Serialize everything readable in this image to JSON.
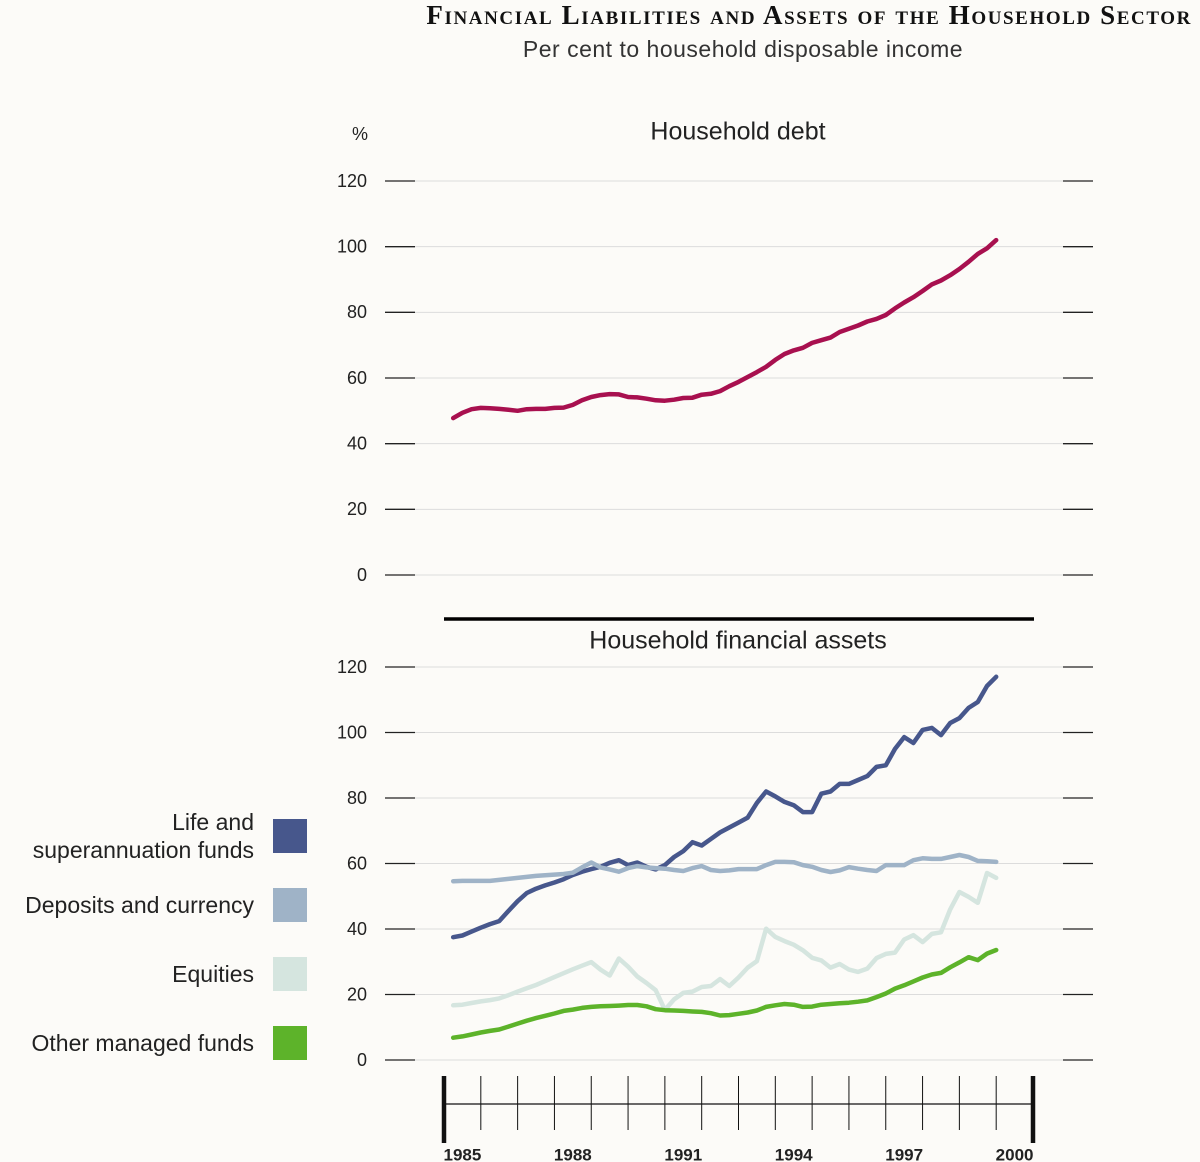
{
  "title": "Financial Liabilities and Assets of the Household Sector",
  "subtitle": "Per cent to household disposable income",
  "chart_data": [
    {
      "type": "line",
      "title": "Household debt",
      "ylabel": "%",
      "x": [
        1985.25,
        1985.5,
        1985.75,
        1986,
        1986.25,
        1986.5,
        1986.75,
        1987,
        1987.25,
        1987.5,
        1987.75,
        1988,
        1988.25,
        1988.5,
        1988.75,
        1989,
        1989.25,
        1989.5,
        1989.75,
        1990,
        1990.25,
        1990.5,
        1990.75,
        1991,
        1991.25,
        1991.5,
        1991.75,
        1992,
        1992.25,
        1992.5,
        1992.75,
        1993,
        1993.25,
        1993.5,
        1993.75,
        1994,
        1994.25,
        1994.5,
        1994.75,
        1995,
        1995.25,
        1995.5,
        1995.75,
        1996,
        1996.25,
        1996.5,
        1996.75,
        1997,
        1997.25,
        1997.5,
        1997.75,
        1998,
        1998.25,
        1998.5,
        1998.75,
        1999,
        1999.25,
        1999.5,
        1999.75,
        2000
      ],
      "values": [
        47.8,
        49.4,
        50.5,
        50.9,
        50.8,
        50.6,
        50.3,
        50,
        50.5,
        50.6,
        50.6,
        50.9,
        51,
        51.8,
        53.2,
        54.2,
        54.8,
        55.1,
        55,
        54.2,
        54.1,
        53.7,
        53.2,
        53.1,
        53.4,
        53.9,
        54,
        54.9,
        55.2,
        56,
        57.5,
        58.8,
        60.3,
        61.8,
        63.4,
        65.5,
        67.3,
        68.4,
        69.2,
        70.7,
        71.5,
        72.3,
        74,
        75,
        76,
        77.2,
        78,
        79.2,
        81.2,
        83,
        84.6,
        86.5,
        88.5,
        89.7,
        91.3,
        93.2,
        95.4,
        97.8,
        99.5,
        102
      ],
      "color": "#a8104f",
      "xlim": [
        1985,
        2001
      ],
      "ylim": [
        0,
        120
      ],
      "yticks": [
        0,
        20,
        40,
        60,
        80,
        100,
        120
      ]
    },
    {
      "type": "line",
      "title": "Household financial assets",
      "x": [
        1985.25,
        1985.5,
        1985.75,
        1986,
        1986.25,
        1986.5,
        1986.75,
        1987,
        1987.25,
        1987.5,
        1987.75,
        1988,
        1988.25,
        1988.5,
        1988.75,
        1989,
        1989.25,
        1989.5,
        1989.75,
        1990,
        1990.25,
        1990.5,
        1990.75,
        1991,
        1991.25,
        1991.5,
        1991.75,
        1992,
        1992.25,
        1992.5,
        1992.75,
        1993,
        1993.25,
        1993.5,
        1993.75,
        1994,
        1994.25,
        1994.5,
        1994.75,
        1995,
        1995.25,
        1995.5,
        1995.75,
        1996,
        1996.25,
        1996.5,
        1996.75,
        1997,
        1997.25,
        1997.5,
        1997.75,
        1998,
        1998.25,
        1998.5,
        1998.75,
        1999,
        1999.25,
        1999.5,
        1999.75,
        2000
      ],
      "series": [
        {
          "name": "Life and superannuation funds",
          "color": "#47578c",
          "values": [
            37.5,
            38,
            39.2,
            40.4,
            41.5,
            42.4,
            45.5,
            48.5,
            51,
            52.3,
            53.3,
            54.2,
            55.2,
            56.5,
            57.5,
            58.3,
            59,
            60.2,
            61,
            59.5,
            60.3,
            59,
            58.2,
            59.5,
            62,
            63.8,
            66.5,
            65.5,
            67.5,
            69.5,
            71,
            72.5,
            74,
            78.5,
            82,
            80.5,
            78.8,
            77.8,
            75.7,
            75.7,
            81.3,
            82,
            84.3,
            84.3,
            85.5,
            86.7,
            89.5,
            90,
            95,
            98.6,
            96.8,
            100.8,
            101.4,
            99.2,
            102.9,
            104.4,
            107.5,
            109.3,
            114.2,
            117
          ]
        },
        {
          "name": "Deposits and currency",
          "color": "#9fb3c7",
          "values": [
            54.6,
            54.7,
            54.7,
            54.7,
            54.7,
            55,
            55.3,
            55.6,
            55.9,
            56.2,
            56.4,
            56.6,
            56.8,
            57.2,
            58.8,
            60.3,
            58.8,
            58.2,
            57.5,
            58.6,
            59.2,
            58.8,
            58.6,
            58.4,
            58,
            57.7,
            58.6,
            59.2,
            58,
            57.7,
            57.9,
            58.3,
            58.3,
            58.3,
            59.5,
            60.5,
            60.5,
            60.4,
            59.5,
            59,
            58,
            57.4,
            57.9,
            58.9,
            58.4,
            58,
            57.7,
            59.5,
            59.5,
            59.5,
            61,
            61.6,
            61.4,
            61.4,
            62,
            62.6,
            62,
            60.8,
            60.7,
            60.5
          ]
        },
        {
          "name": "Equities",
          "color": "#d5e5df",
          "values": [
            16.7,
            16.9,
            17.4,
            17.9,
            18.3,
            18.8,
            19.8,
            20.9,
            21.9,
            22.9,
            24.1,
            25.3,
            26.5,
            27.7,
            28.8,
            29.9,
            27.6,
            25.8,
            31,
            28.5,
            25.5,
            23.5,
            21.3,
            15.3,
            18.5,
            20.5,
            20.9,
            22.3,
            22.6,
            24.7,
            22.6,
            25.2,
            28.2,
            30.2,
            40.1,
            37.6,
            36.3,
            35.2,
            33.5,
            31.2,
            30.4,
            28.2,
            29.3,
            27.6,
            26.9,
            27.9,
            31.1,
            32.4,
            32.8,
            36.8,
            38.1,
            36,
            38.5,
            39,
            46,
            51.3,
            49.8,
            48,
            57.1,
            55.6
          ]
        },
        {
          "name": "Other managed funds",
          "color": "#5db32a",
          "values": [
            6.8,
            7.2,
            7.8,
            8.4,
            8.9,
            9.3,
            10.2,
            11.1,
            12,
            12.8,
            13.5,
            14.2,
            15,
            15.4,
            15.9,
            16.2,
            16.4,
            16.5,
            16.6,
            16.8,
            16.8,
            16.4,
            15.5,
            15.2,
            15.1,
            15,
            14.8,
            14.7,
            14.3,
            13.6,
            13.7,
            14.1,
            14.5,
            15.1,
            16.2,
            16.7,
            17.1,
            16.9,
            16.2,
            16.3,
            16.9,
            17.1,
            17.3,
            17.5,
            17.8,
            18.2,
            19.2,
            20.3,
            21.8,
            22.8,
            24,
            25.2,
            26.1,
            26.6,
            28.3,
            29.8,
            31.4,
            30.5,
            32.5,
            33.6
          ]
        }
      ],
      "xlim": [
        1985,
        2001
      ],
      "ylim": [
        0,
        120
      ],
      "yticks": [
        0,
        20,
        40,
        60,
        80,
        100,
        120
      ],
      "xticks": [
        1985,
        1986,
        1987,
        1988,
        1989,
        1990,
        1991,
        1992,
        1993,
        1994,
        1995,
        1996,
        1997,
        1998,
        1999,
        2000,
        2001
      ],
      "xlabels": [
        {
          "value": 1985.5,
          "label": "1985"
        },
        {
          "value": 1988.5,
          "label": "1988"
        },
        {
          "value": 1991.5,
          "label": "1991"
        },
        {
          "value": 1994.5,
          "label": "1994"
        },
        {
          "value": 1997.5,
          "label": "1997"
        },
        {
          "value": 2000.5,
          "label": "2000"
        }
      ],
      "legend": "left"
    }
  ]
}
